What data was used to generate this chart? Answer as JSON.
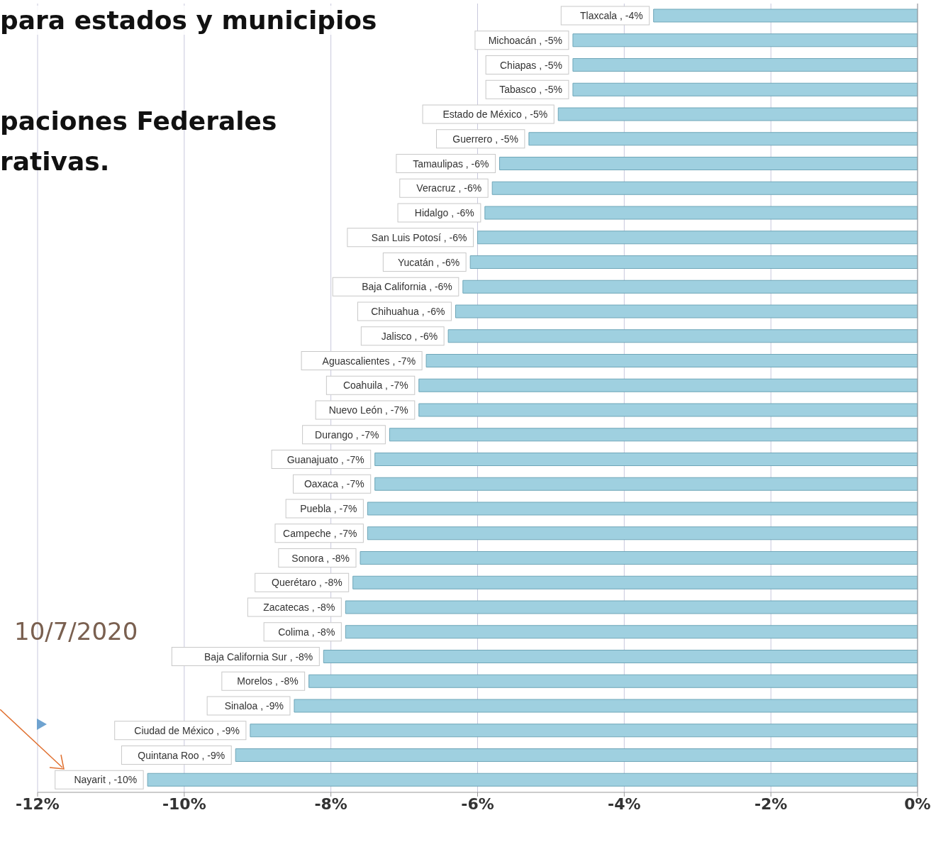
{
  "chart_data": {
    "type": "bar",
    "orientation": "horizontal",
    "title": "para estados y municipios",
    "annotations": [
      "paciones Federales",
      "rativas.",
      "10/7/2020"
    ],
    "categories": [
      "Tlaxcala",
      "Michoacán",
      "Chiapas",
      "Tabasco",
      "Estado de México",
      "Guerrero",
      "Tamaulipas",
      "Veracruz",
      "Hidalgo",
      "San Luis Potosí",
      "Yucatán",
      "Baja California",
      "Chihuahua",
      "Jalisco",
      "Aguascalientes",
      "Coahuila",
      "Nuevo León",
      "Durango",
      "Guanajuato",
      "Oaxaca",
      "Puebla",
      "Campeche",
      "Sonora",
      "Querétaro",
      "Zacatecas",
      "Colima",
      "Baja California Sur",
      "Morelos",
      "Sinaloa",
      "Ciudad de México",
      "Quintana Roo",
      "Nayarit"
    ],
    "values": [
      -3.6,
      -4.7,
      -4.7,
      -4.7,
      -4.9,
      -5.3,
      -5.7,
      -5.8,
      -5.9,
      -6.0,
      -6.1,
      -6.2,
      -6.3,
      -6.4,
      -6.7,
      -6.8,
      -6.8,
      -7.2,
      -7.4,
      -7.4,
      -7.5,
      -7.5,
      -7.6,
      -7.7,
      -7.8,
      -7.8,
      -8.1,
      -8.3,
      -8.5,
      -9.1,
      -9.3,
      -10.5
    ],
    "value_labels": [
      ", -4%",
      ", -5%",
      ", -5%",
      ", -5%",
      ", -5%",
      ", -5%",
      ", -6%",
      ", -6%",
      ", -6%",
      ", -6%",
      ", -6%",
      ", -6%",
      ", -6%",
      ", -6%",
      ", -7%",
      ", -7%",
      ", -7%",
      ", -7%",
      ", -7%",
      ", -7%",
      ", -7%",
      ", -7%",
      ", -8%",
      ", -8%",
      ", -8%",
      ", -8%",
      ", -8%",
      ", -8%",
      ", -9%",
      ", -9%",
      ", -9%",
      ", -10%"
    ],
    "color": "#9fd0e0",
    "xlim": [
      -12,
      0
    ],
    "xticks": [
      {
        "value": -12,
        "label": "-12%"
      },
      {
        "value": -10,
        "label": "-10%"
      },
      {
        "value": -8,
        "label": "-8%"
      },
      {
        "value": -6,
        "label": "-6%"
      },
      {
        "value": -4,
        "label": "-4%"
      },
      {
        "value": -2,
        "label": "-2%"
      },
      {
        "value": 0,
        "label": "0%"
      }
    ],
    "grid": "x",
    "tick_labels": "x"
  }
}
